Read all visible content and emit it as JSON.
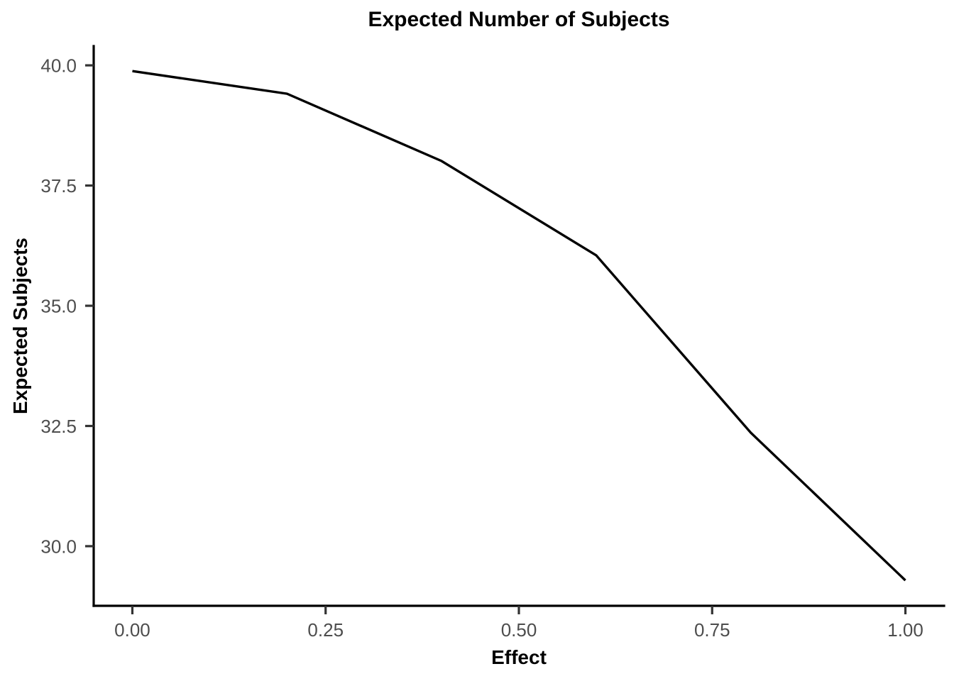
{
  "chart_data": {
    "type": "line",
    "title": "Expected Number of Subjects",
    "xlabel": "Effect",
    "ylabel": "Expected Subjects",
    "x": [
      0.0,
      0.2,
      0.4,
      0.6,
      0.8,
      1.0
    ],
    "series": [
      {
        "name": "Expected Subjects",
        "values": [
          39.88,
          39.41,
          38.01,
          36.05,
          32.36,
          29.29
        ]
      }
    ],
    "xlim": [
      -0.05,
      1.05
    ],
    "ylim": [
      28.76,
      40.4
    ],
    "x_ticks": {
      "values": [
        0.0,
        0.25,
        0.5,
        0.75,
        1.0
      ],
      "labels": [
        "0.00",
        "0.25",
        "0.50",
        "0.75",
        "1.00"
      ]
    },
    "y_ticks": {
      "values": [
        30.0,
        32.5,
        35.0,
        37.5,
        40.0
      ],
      "labels": [
        "30.0",
        "32.5",
        "35.0",
        "37.5",
        "40.0"
      ]
    },
    "grid": false,
    "legend_position": "none",
    "colors": {
      "line": "#000000",
      "axis": "#000000",
      "tick": "#333333",
      "tick_label": "#4D4D4D",
      "text": "#000000",
      "background": "#FFFFFF"
    }
  }
}
